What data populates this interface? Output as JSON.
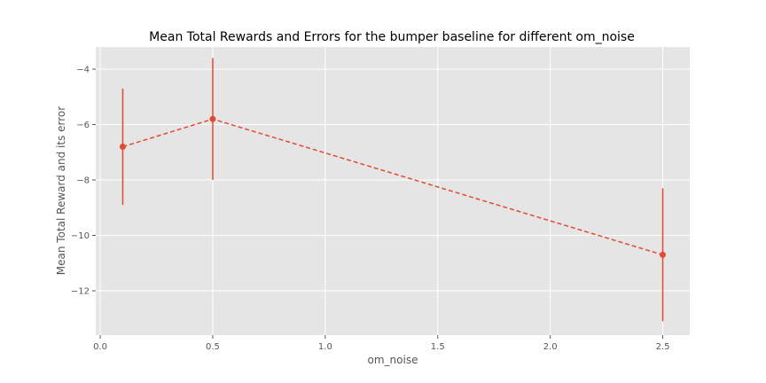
{
  "chart_data": {
    "type": "line",
    "title": "Mean Total Rewards and Errors for the bumper baseline for different om_noise",
    "xlabel": "om_noise",
    "ylabel": "Mean Total Reward and its error",
    "xlim": [
      -0.02,
      2.62
    ],
    "ylim": [
      -13.6,
      -3.2
    ],
    "x_ticks": [
      0.0,
      0.5,
      1.0,
      1.5,
      2.0,
      2.5
    ],
    "x_tick_labels": [
      "0.0",
      "0.5",
      "1.0",
      "1.5",
      "2.0",
      "2.5"
    ],
    "y_ticks": [
      -12,
      -10,
      -8,
      -6,
      -4
    ],
    "y_tick_labels": [
      "−12",
      "−10",
      "−8",
      "−6",
      "−4"
    ],
    "grid": true,
    "series": [
      {
        "x": [
          0.1,
          0.5,
          2.5
        ],
        "y": [
          -6.8,
          -5.8,
          -10.7
        ],
        "error": [
          2.1,
          2.2,
          2.4
        ],
        "color": "#E24A33",
        "linestyle": "dashed",
        "marker": "circle"
      }
    ]
  },
  "colors": {
    "plot_background": "#E5E5E5",
    "grid": "#FFFFFF",
    "series": "#E24A33"
  }
}
